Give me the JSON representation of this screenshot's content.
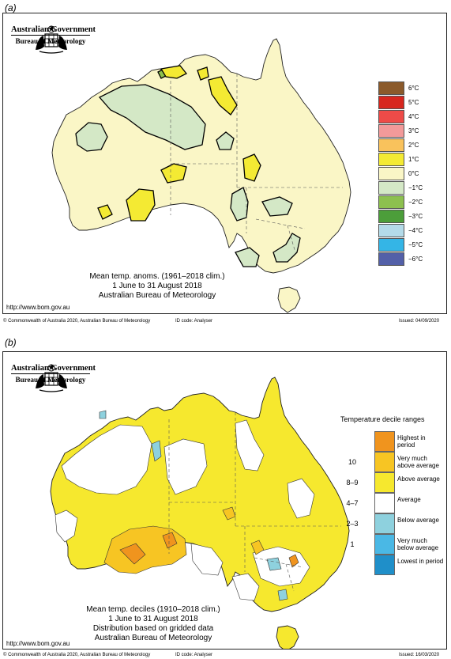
{
  "panel_a": {
    "label": "(a)",
    "logo": {
      "government": "Australian Government",
      "bureau": "Bureau of Meteorology"
    },
    "caption": [
      "Mean temp. anoms. (1961–2018 clim.)",
      "1 June to 31 August 2018",
      "Australian Bureau of Meteorology"
    ],
    "url": "http://www.bom.gov.au",
    "footer_left": "© Commonwealth of Australia 2020, Australian Bureau of Meteorology",
    "footer_id": "ID code: Analyser",
    "footer_issued": "Issued: 04/09/2020",
    "legend": [
      {
        "label": "6°C",
        "color": "#8b5a2b"
      },
      {
        "label": "5°C",
        "color": "#d7261e"
      },
      {
        "label": "4°C",
        "color": "#ee4b48"
      },
      {
        "label": "3°C",
        "color": "#f29a9a"
      },
      {
        "label": "2°C",
        "color": "#f9c25c"
      },
      {
        "label": "1°C",
        "color": "#f4ea33"
      },
      {
        "label": "0°C",
        "color": "#faf6c6"
      },
      {
        "label": "−1°C",
        "color": "#d4e8c6"
      },
      {
        "label": "−2°C",
        "color": "#8dc04f"
      },
      {
        "label": "−3°C",
        "color": "#4c9e3a"
      },
      {
        "label": "−4°C",
        "color": "#b4dbe9"
      },
      {
        "label": "−5°C",
        "color": "#34b5e6"
      },
      {
        "label": "−6°C",
        "color": "#5360a8"
      }
    ]
  },
  "panel_b": {
    "label": "(b)",
    "logo": {
      "government": "Australian Government",
      "bureau": "Bureau of Meteorology"
    },
    "caption": [
      "Mean temp. deciles (1910–2018 clim.)",
      "1 June to 31 August 2018",
      "Distribution based on gridded data",
      "Australian Bureau of Meteorology"
    ],
    "url": "http://www.bom.gov.au",
    "footer_left": "© Commonwealth of Australia 2020, Australian Bureau of Meteorology",
    "footer_id": "ID code: Analyser",
    "footer_issued": "Issued: 16/03/2020",
    "legend_title": "Temperature decile ranges",
    "legend": [
      {
        "label": "Highest in period",
        "decile": "",
        "color": "#f0941e"
      },
      {
        "label": "Very much above average",
        "decile": "10",
        "color": "#f7c523"
      },
      {
        "label": "Above average",
        "decile": "8–9",
        "color": "#f6e82e"
      },
      {
        "label": "Average",
        "decile": "4–7",
        "color": "#ffffff"
      },
      {
        "label": "Below average",
        "decile": "2–3",
        "color": "#8ed1de"
      },
      {
        "label": "Very much below average",
        "decile": "1",
        "color": "#4ab8e5"
      },
      {
        "label": "Lowest in period",
        "decile": "",
        "color": "#1f8fc9"
      }
    ]
  }
}
